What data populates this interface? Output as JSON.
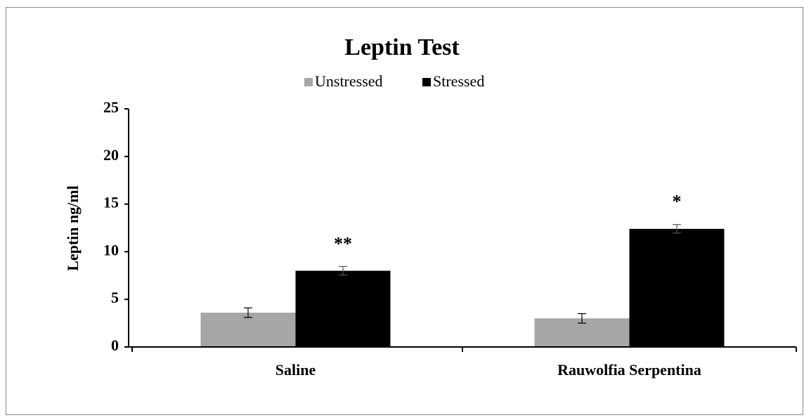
{
  "chart_data": {
    "type": "bar",
    "title": "Leptin Test",
    "y_label": "Leptin ng/ml",
    "categories": [
      "Saline",
      "Rauwolfia Serpentina"
    ],
    "series": [
      {
        "name": "Unstressed",
        "color": "#a6a6a6",
        "values": [
          3.6,
          3.0
        ],
        "errors": [
          0.5,
          0.5
        ]
      },
      {
        "name": "Stressed",
        "color": "#000000",
        "values": [
          8.0,
          12.4
        ],
        "errors": [
          0.45,
          0.45
        ],
        "annotations": [
          "**",
          "*"
        ]
      }
    ],
    "ylim": [
      0,
      25
    ],
    "yticks": [
      0,
      5,
      10,
      15,
      20,
      25
    ],
    "legend": "top"
  }
}
